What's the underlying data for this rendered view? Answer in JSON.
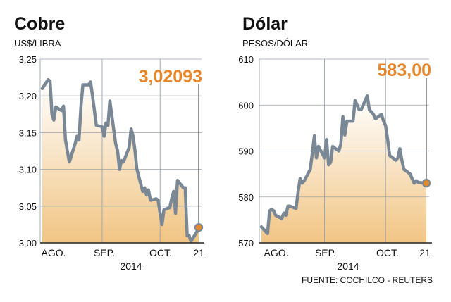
{
  "source": "FUENTE: COCHILCO - REUTERS",
  "colors": {
    "line": "#7a8794",
    "highlight": "#e8862a",
    "grid": "#9aa3ab",
    "axis": "#222222",
    "fill_top": "#ffffff",
    "fill_bottom": "#f1c584"
  },
  "chart_data": [
    {
      "type": "area",
      "title": "Cobre",
      "subtitle": "US$/LIBRA",
      "ylim": [
        3.0,
        3.25
      ],
      "yticks": [
        "3,25",
        "3,20",
        "3,15",
        "3,10",
        "3,05",
        "3,00"
      ],
      "xticks": [
        "AGO.",
        "SEP.",
        "OCT.",
        "21"
      ],
      "year": "2014",
      "last_value": 3.02093,
      "last_label": "3,02093",
      "x": [
        "2014-08-01",
        "2014-08-04",
        "2014-08-05",
        "2014-08-06",
        "2014-08-07",
        "2014-08-08",
        "2014-08-11",
        "2014-08-12",
        "2014-08-13",
        "2014-08-14",
        "2014-08-15",
        "2014-08-18",
        "2014-08-19",
        "2014-08-20",
        "2014-08-21",
        "2014-08-22",
        "2014-08-25",
        "2014-08-26",
        "2014-08-27",
        "2014-08-28",
        "2014-08-29",
        "2014-09-01",
        "2014-09-02",
        "2014-09-03",
        "2014-09-04",
        "2014-09-05",
        "2014-09-08",
        "2014-09-09",
        "2014-09-10",
        "2014-09-11",
        "2014-09-12",
        "2014-09-15",
        "2014-09-16",
        "2014-09-17",
        "2014-09-18",
        "2014-09-19",
        "2014-09-22",
        "2014-09-23",
        "2014-09-24",
        "2014-09-25",
        "2014-09-26",
        "2014-09-29",
        "2014-09-30",
        "2014-10-01",
        "2014-10-02",
        "2014-10-03",
        "2014-10-06",
        "2014-10-07",
        "2014-10-08",
        "2014-10-09",
        "2014-10-10",
        "2014-10-13",
        "2014-10-14",
        "2014-10-15",
        "2014-10-16",
        "2014-10-17",
        "2014-10-20",
        "2014-10-21"
      ],
      "values": [
        3.21,
        3.222,
        3.22,
        3.175,
        3.167,
        3.185,
        3.18,
        3.186,
        3.14,
        3.125,
        3.11,
        3.135,
        3.145,
        3.14,
        3.185,
        3.215,
        3.215,
        3.219,
        3.2,
        3.18,
        3.16,
        3.158,
        3.145,
        3.163,
        3.16,
        3.193,
        3.135,
        3.125,
        3.1,
        3.112,
        3.11,
        3.13,
        3.155,
        3.145,
        3.125,
        3.1,
        3.07,
        3.075,
        3.065,
        3.072,
        3.058,
        3.06,
        3.058,
        3.04,
        3.025,
        3.045,
        3.048,
        3.06,
        3.07,
        3.04,
        3.085,
        3.075,
        3.075,
        3.01,
        3.01,
        3.002,
        3.015,
        3.02093
      ]
    },
    {
      "type": "area",
      "title": "Dólar",
      "subtitle": "PESOS/DÓLAR",
      "ylim": [
        570,
        610
      ],
      "yticks": [
        "610",
        "600",
        "590",
        "580",
        "570"
      ],
      "xticks": [
        "AGO.",
        "SEP.",
        "OCT.",
        "21"
      ],
      "year": "2014",
      "last_value": 583.0,
      "last_label": "583,00",
      "x": [
        "2014-08-01",
        "2014-08-04",
        "2014-08-05",
        "2014-08-06",
        "2014-08-07",
        "2014-08-08",
        "2014-08-11",
        "2014-08-12",
        "2014-08-13",
        "2014-08-14",
        "2014-08-15",
        "2014-08-18",
        "2014-08-19",
        "2014-08-20",
        "2014-08-21",
        "2014-08-22",
        "2014-08-25",
        "2014-08-26",
        "2014-08-27",
        "2014-08-28",
        "2014-08-29",
        "2014-09-01",
        "2014-09-02",
        "2014-09-03",
        "2014-09-04",
        "2014-09-05",
        "2014-09-08",
        "2014-09-09",
        "2014-09-10",
        "2014-09-11",
        "2014-09-12",
        "2014-09-15",
        "2014-09-16",
        "2014-09-17",
        "2014-09-18",
        "2014-09-19",
        "2014-09-22",
        "2014-09-23",
        "2014-09-24",
        "2014-09-25",
        "2014-09-26",
        "2014-09-29",
        "2014-09-30",
        "2014-10-01",
        "2014-10-02",
        "2014-10-03",
        "2014-10-06",
        "2014-10-07",
        "2014-10-08",
        "2014-10-09",
        "2014-10-10",
        "2014-10-13",
        "2014-10-14",
        "2014-10-15",
        "2014-10-16",
        "2014-10-17",
        "2014-10-20",
        "2014-10-21"
      ],
      "values": [
        573.5,
        572.0,
        577.0,
        577.3,
        577.0,
        576.0,
        575.3,
        576.5,
        576.0,
        578.0,
        578.0,
        577.5,
        581.0,
        584.0,
        583.0,
        583.5,
        586.0,
        589.5,
        593.3,
        588.5,
        591.0,
        588.5,
        592.5,
        587.0,
        587.5,
        591.0,
        590.0,
        591.5,
        597.5,
        593.5,
        596.5,
        596.5,
        601.0,
        600.0,
        599.0,
        599.0,
        602.0,
        599.0,
        598.5,
        598.0,
        597.0,
        598.0,
        596.5,
        595.5,
        592.5,
        589.0,
        588.0,
        588.5,
        590.5,
        588.0,
        586.0,
        585.0,
        584.0,
        583.0,
        583.5,
        583.2,
        583.0,
        583.0
      ]
    }
  ]
}
